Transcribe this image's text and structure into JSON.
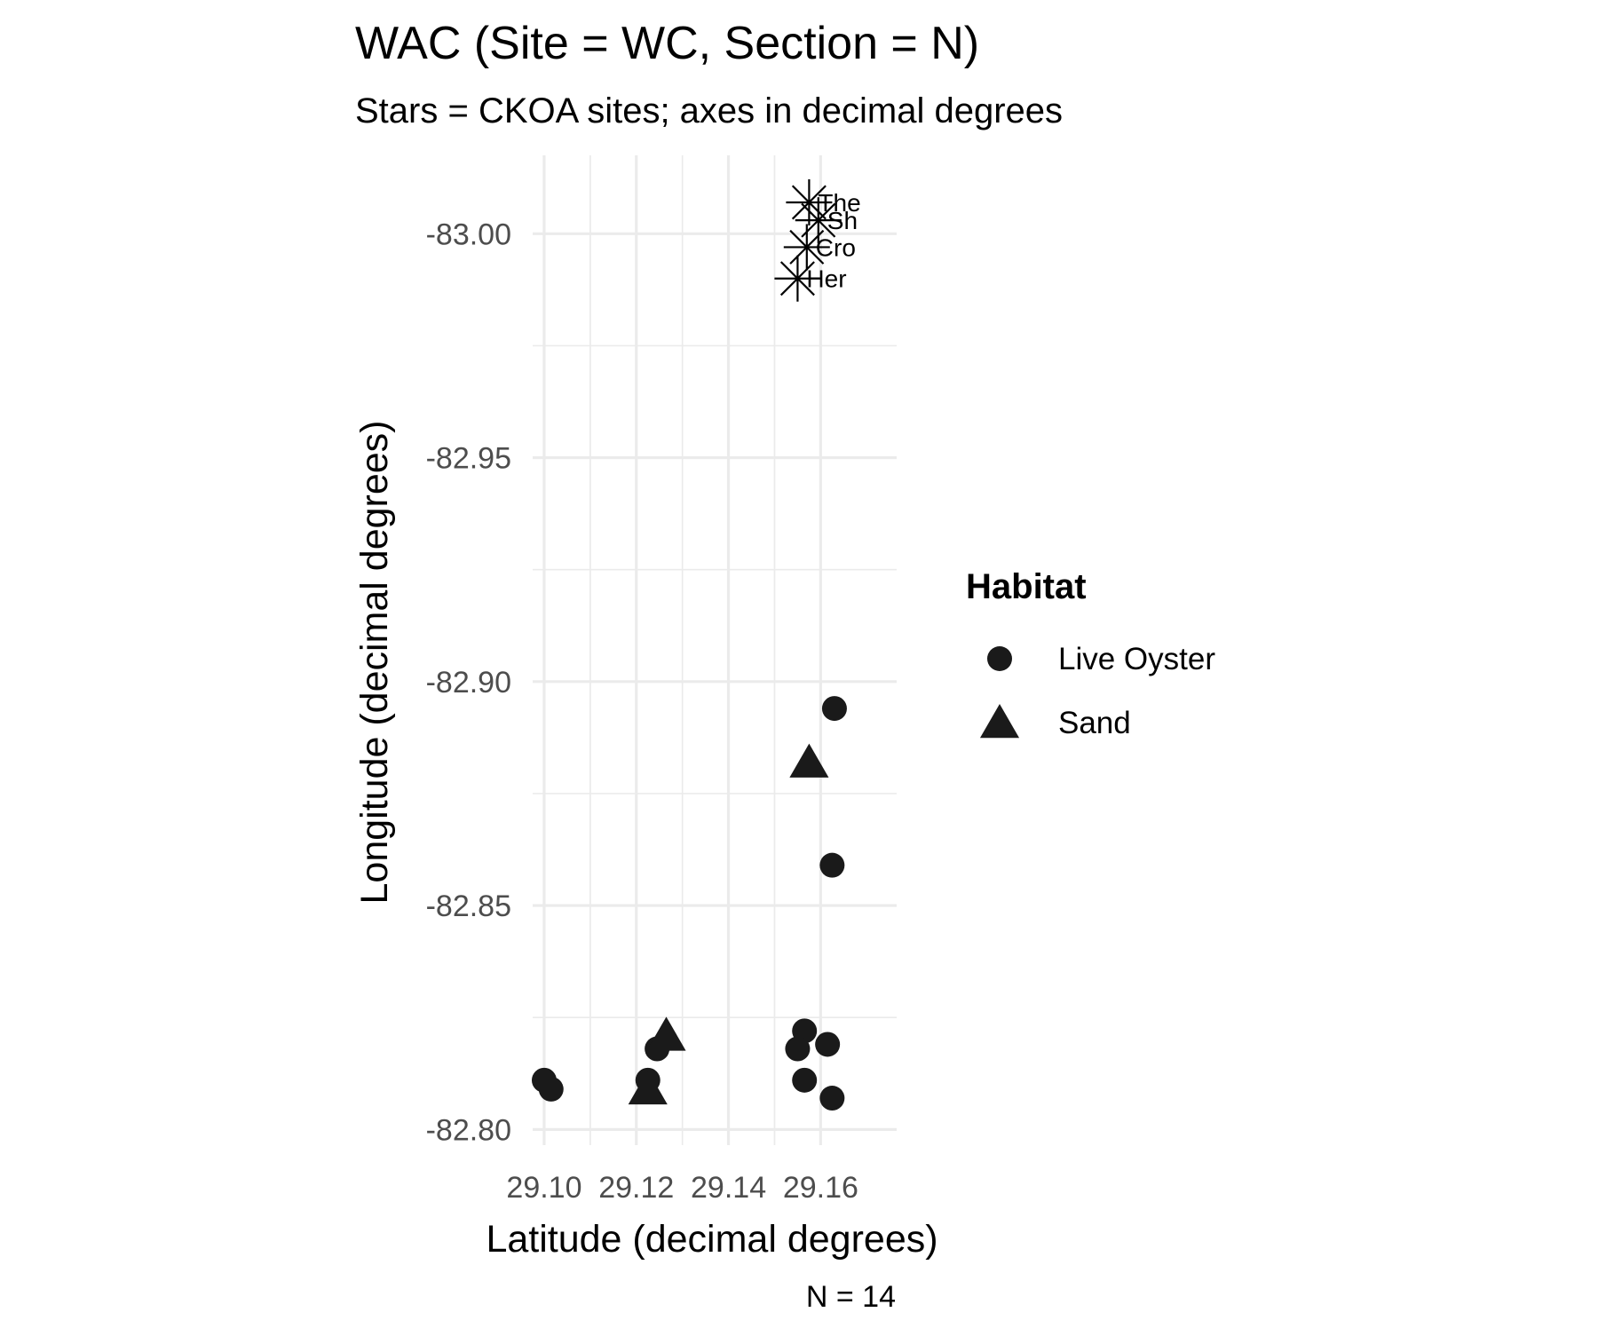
{
  "chart_data": {
    "type": "scatter",
    "title": "WAC (Site = WC, Section = N)",
    "subtitle": "Stars = CKOA sites; axes in decimal degrees",
    "xlabel": "Latitude (decimal degrees)",
    "ylabel": "Longitude (decimal degrees)",
    "caption": "N = 14",
    "xlim": [
      29.0975,
      29.1765
    ],
    "ylim": [
      -83.0175,
      -82.7965
    ],
    "y_reversed": true,
    "x_ticks": [
      29.1,
      29.12,
      29.14,
      29.16
    ],
    "x_tick_labels": [
      "29.10",
      "29.12",
      "29.14",
      "29.16"
    ],
    "x_minor_ticks": [
      29.11,
      29.13,
      29.15
    ],
    "y_ticks": [
      -83.0,
      -82.95,
      -82.9,
      -82.85,
      -82.8
    ],
    "y_tick_labels": [
      "-83.00",
      "-82.95",
      "-82.90",
      "-82.85",
      "-82.80"
    ],
    "y_minor_ticks": [
      -82.975,
      -82.925,
      -82.875,
      -82.825
    ],
    "grid": true,
    "legend": {
      "title": "Habitat",
      "position": "right",
      "entries": [
        {
          "label": "Live Oyster",
          "shape": "circle"
        },
        {
          "label": "Sand",
          "shape": "triangle"
        }
      ]
    },
    "series": [
      {
        "name": "Live Oyster",
        "shape": "circle",
        "points": [
          {
            "x": 29.1,
            "y": -82.811
          },
          {
            "x": 29.1015,
            "y": -82.809
          },
          {
            "x": 29.1225,
            "y": -82.811
          },
          {
            "x": 29.1245,
            "y": -82.818
          },
          {
            "x": 29.163,
            "y": -82.894
          },
          {
            "x": 29.1625,
            "y": -82.859
          },
          {
            "x": 29.1565,
            "y": -82.822
          },
          {
            "x": 29.155,
            "y": -82.818
          },
          {
            "x": 29.1615,
            "y": -82.819
          },
          {
            "x": 29.1565,
            "y": -82.811
          },
          {
            "x": 29.1625,
            "y": -82.807
          }
        ]
      },
      {
        "name": "Sand",
        "shape": "triangle",
        "points": [
          {
            "x": 29.1265,
            "y": -82.821
          },
          {
            "x": 29.1225,
            "y": -82.809
          },
          {
            "x": 29.1575,
            "y": -82.882
          }
        ]
      },
      {
        "name": "CKOA sites",
        "shape": "star",
        "points": [
          {
            "x": 29.1575,
            "y": -83.007,
            "label": "The"
          },
          {
            "x": 29.1595,
            "y": -83.003,
            "label": "Sh"
          },
          {
            "x": 29.157,
            "y": -82.997,
            "label": "Cro"
          },
          {
            "x": 29.155,
            "y": -82.99,
            "label": "Her"
          }
        ]
      }
    ]
  },
  "colors": {
    "points": "#1a1a1a",
    "grid": "#ebebeb",
    "tick_label": "#4d4d4d",
    "background": "#ffffff"
  }
}
